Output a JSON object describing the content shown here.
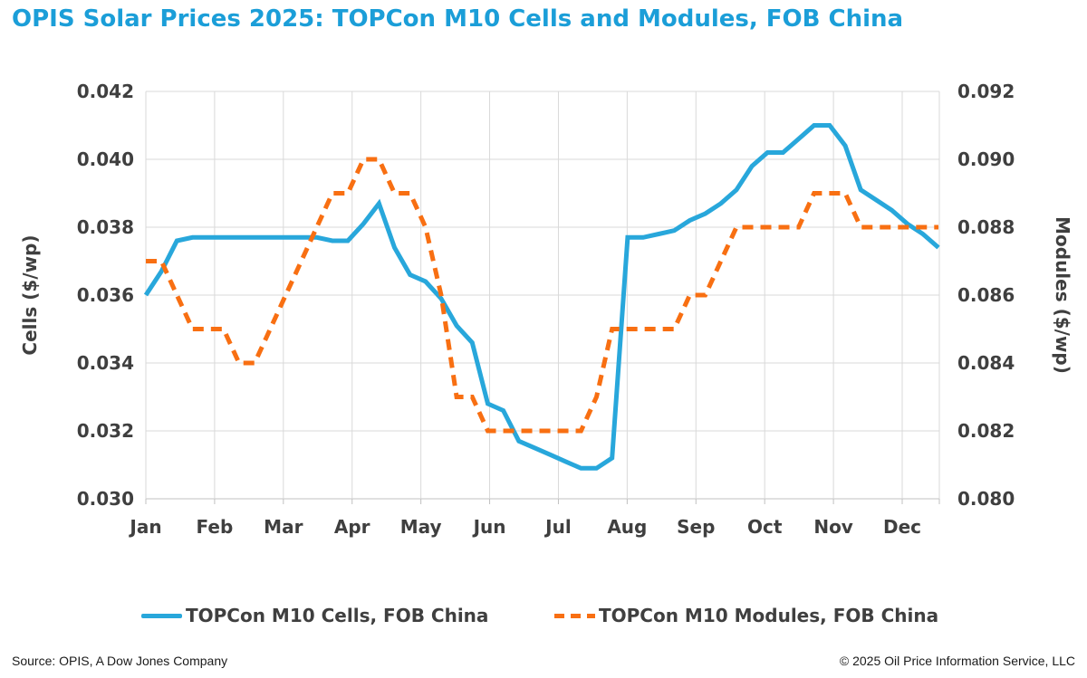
{
  "title": "OPIS Solar Prices 2025: TOPCon M10 Cells and Modules, FOB China",
  "chart_data": {
    "type": "line",
    "title": "OPIS Solar Prices 2025: TOPCon M10 Cells and Modules, FOB China",
    "x_labels": [
      "Jan",
      "Feb",
      "Mar",
      "Apr",
      "May",
      "Jun",
      "Jul",
      "Aug",
      "Sep",
      "Oct",
      "Nov",
      "Dec"
    ],
    "grid": "on",
    "legend_position": "bottom",
    "left_axis": {
      "label": "Cells ($/wp)",
      "min": 0.03,
      "max": 0.042,
      "ticks": [
        "0.042",
        "0.040",
        "0.038",
        "0.036",
        "0.034",
        "0.032",
        "0.030"
      ]
    },
    "right_axis": {
      "label": "Modules ($/wp)",
      "min": 0.08,
      "max": 0.092,
      "ticks": [
        "0.092",
        "0.090",
        "0.088",
        "0.086",
        "0.084",
        "0.082",
        "0.080"
      ]
    },
    "series": [
      {
        "name": "TOPCon M10 Cells, FOB China",
        "axis": "left",
        "color": "#28a7db",
        "style": "solid",
        "values": [
          0.036,
          0.0367,
          0.0376,
          0.0377,
          0.0377,
          0.0377,
          0.0377,
          0.0377,
          0.0377,
          0.0377,
          0.0377,
          0.0377,
          0.0376,
          0.0376,
          0.0381,
          0.0387,
          0.0374,
          0.0366,
          0.0364,
          0.0359,
          0.0351,
          0.0346,
          0.0328,
          0.0326,
          0.0317,
          0.0315,
          0.0313,
          0.0311,
          0.0309,
          0.0309,
          0.0312,
          0.0377,
          0.0377,
          0.0378,
          0.0379,
          0.0382,
          0.0384,
          0.0387,
          0.0391,
          0.0398,
          0.0402,
          0.0402,
          0.0406,
          0.041,
          0.041,
          0.0404,
          0.0391,
          0.0388,
          0.0385,
          0.0381,
          0.0378,
          0.0374
        ]
      },
      {
        "name": "TOPCon M10 Modules, FOB China",
        "axis": "right",
        "color": "#f86f12",
        "style": "dashed",
        "values": [
          0.087,
          0.087,
          0.086,
          0.085,
          0.085,
          0.085,
          0.084,
          0.084,
          0.085,
          0.086,
          0.087,
          0.088,
          0.089,
          0.089,
          0.09,
          0.09,
          0.089,
          0.089,
          0.088,
          0.086,
          0.083,
          0.083,
          0.082,
          0.082,
          0.082,
          0.082,
          0.082,
          0.082,
          0.082,
          0.083,
          0.085,
          0.085,
          0.085,
          0.085,
          0.085,
          0.086,
          0.086,
          0.087,
          0.088,
          0.088,
          0.088,
          0.088,
          0.088,
          0.089,
          0.089,
          0.089,
          0.088,
          0.088,
          0.088,
          0.088,
          0.088,
          0.088
        ]
      }
    ]
  },
  "colors": {
    "title": "#1b9ed8",
    "cells_line": "#28a7db",
    "modules_line": "#f86f12",
    "gridline": "#d9d9d9",
    "axis_line": "#c0c0c0",
    "axis_text": "#3f3f3f"
  },
  "footer": {
    "source": "Source: OPIS, A Dow Jones Company",
    "copyright": "© 2025 Oil Price Information Service, LLC"
  }
}
